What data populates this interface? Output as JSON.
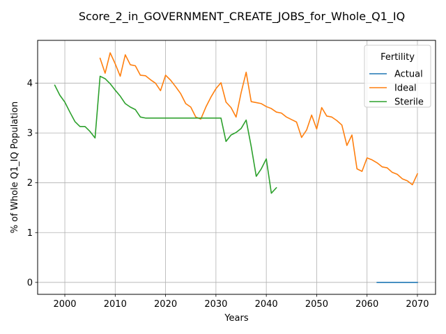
{
  "chart_data": {
    "type": "line",
    "title": "Score_2_in_GOVERNMENT_CREATE_JOBS_for_Whole_Q1_IQ",
    "xlabel": "Years",
    "ylabel": "% of Whole Q1_IQ Population",
    "xlim": [
      1994.6,
      2073.6
    ],
    "ylim": [
      -0.24,
      4.86
    ],
    "xticks": [
      2000,
      2010,
      2020,
      2030,
      2040,
      2050,
      2060,
      2070
    ],
    "xtick_labels": [
      "2000",
      "2010",
      "2020",
      "2030",
      "2040",
      "2050",
      "2060",
      "2070"
    ],
    "yticks": [
      0,
      1,
      2,
      3,
      4
    ],
    "ytick_labels": [
      "0",
      "1",
      "2",
      "3",
      "4"
    ],
    "grid": true,
    "legend": {
      "title": "Fertility",
      "placement": "top-right"
    },
    "series": [
      {
        "name": "Actual",
        "color": "#1f77b4",
        "x": [
          2062,
          2063,
          2064,
          2065,
          2066,
          2067,
          2068,
          2069,
          2070
        ],
        "y": [
          0,
          0,
          0,
          0,
          0,
          0,
          0,
          0,
          0
        ]
      },
      {
        "name": "Ideal",
        "color": "#ff7f0e",
        "x": [
          2007,
          2008,
          2009,
          2010,
          2011,
          2012,
          2013,
          2014,
          2015,
          2016,
          2017,
          2018,
          2019,
          2020,
          2021,
          2022,
          2023,
          2024,
          2025,
          2026,
          2027,
          2028,
          2029,
          2030,
          2031,
          2032,
          2033,
          2034,
          2035,
          2036,
          2037,
          2038,
          2039,
          2040,
          2041,
          2042,
          2043,
          2044,
          2045,
          2046,
          2047,
          2048,
          2049,
          2050,
          2051,
          2052,
          2053,
          2054,
          2055,
          2056,
          2057,
          2058,
          2059,
          2060,
          2061,
          2062,
          2063,
          2064,
          2065,
          2066,
          2067,
          2068,
          2069,
          2070
        ],
        "y": [
          4.5,
          4.2,
          4.61,
          4.39,
          4.14,
          4.57,
          4.37,
          4.35,
          4.16,
          4.15,
          4.07,
          4.0,
          3.85,
          4.16,
          4.06,
          3.93,
          3.79,
          3.59,
          3.52,
          3.32,
          3.28,
          3.52,
          3.72,
          3.89,
          4.01,
          3.62,
          3.51,
          3.32,
          3.81,
          4.22,
          3.63,
          3.61,
          3.59,
          3.53,
          3.49,
          3.42,
          3.4,
          3.32,
          3.27,
          3.22,
          2.91,
          3.06,
          3.36,
          3.08,
          3.51,
          3.34,
          3.32,
          3.25,
          3.16,
          2.75,
          2.96,
          2.28,
          2.23,
          2.5,
          2.46,
          2.4,
          2.32,
          2.3,
          2.21,
          2.17,
          2.08,
          2.04,
          1.96,
          2.18
        ]
      },
      {
        "name": "Sterile",
        "color": "#2ca02c",
        "x": [
          1998,
          1999,
          2000,
          2001,
          2002,
          2003,
          2004,
          2005,
          2006,
          2007,
          2008,
          2009,
          2010,
          2011,
          2012,
          2013,
          2014,
          2015,
          2016,
          2017,
          2018,
          2019,
          2020,
          2021,
          2022,
          2023,
          2024,
          2025,
          2026,
          2027,
          2028,
          2029,
          2030,
          2031,
          2032,
          2033,
          2034,
          2035,
          2036,
          2037,
          2038,
          2039,
          2040,
          2041,
          2042
        ],
        "y": [
          3.96,
          3.76,
          3.62,
          3.42,
          3.23,
          3.13,
          3.13,
          3.03,
          2.9,
          4.14,
          4.09,
          3.99,
          3.86,
          3.74,
          3.59,
          3.52,
          3.47,
          3.32,
          3.3,
          3.3,
          3.3,
          3.3,
          3.3,
          3.3,
          3.3,
          3.3,
          3.3,
          3.3,
          3.3,
          3.3,
          3.3,
          3.3,
          3.3,
          3.3,
          2.83,
          2.96,
          3.01,
          3.09,
          3.26,
          2.73,
          2.13,
          2.28,
          2.48,
          1.79,
          1.9
        ]
      }
    ]
  }
}
